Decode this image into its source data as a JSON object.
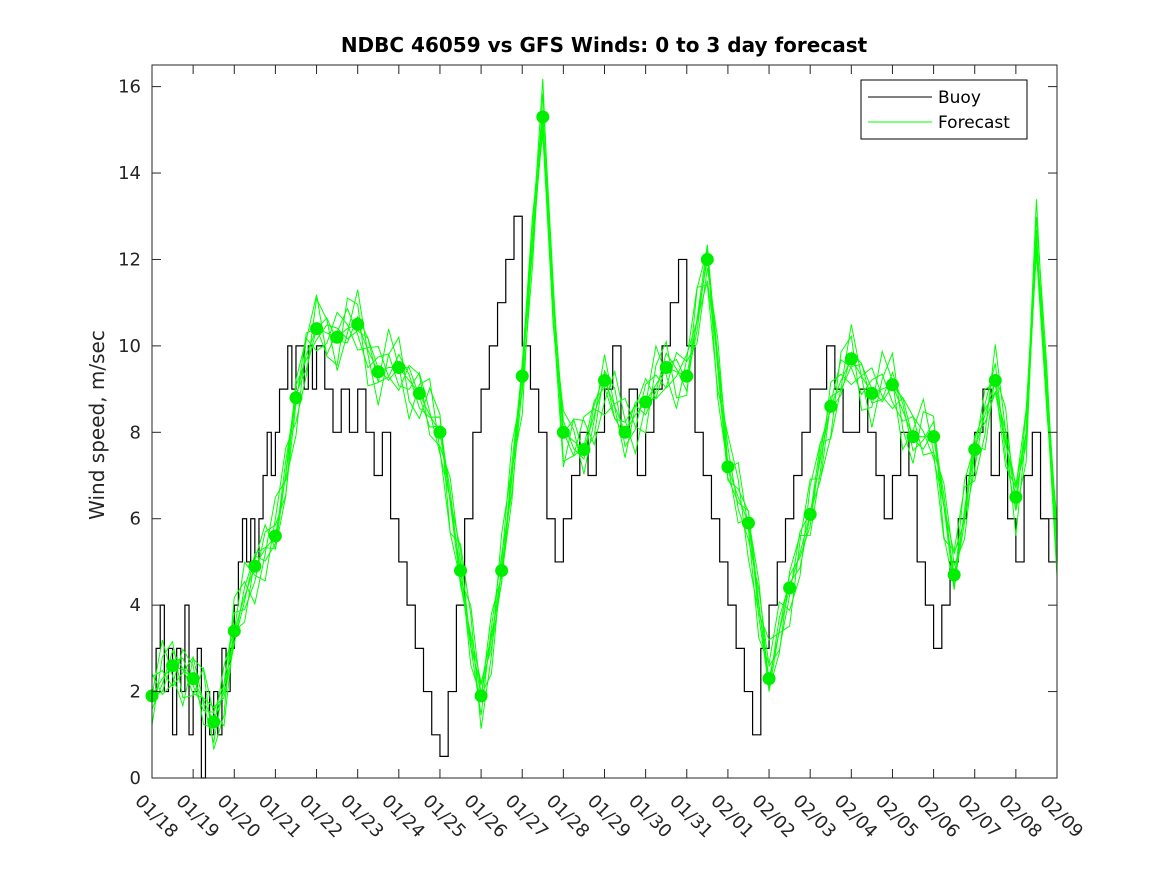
{
  "chart_data": {
    "type": "line",
    "title": "NDBC 46059 vs GFS Winds: 0 to 3 day forecast",
    "xlabel": "",
    "ylabel": "Wind speed, m/sec",
    "x_tick_labels": [
      "01/18",
      "01/19",
      "01/20",
      "01/21",
      "01/22",
      "01/23",
      "01/24",
      "01/25",
      "01/26",
      "01/27",
      "01/28",
      "01/29",
      "01/30",
      "01/31",
      "02/01",
      "02/02",
      "02/03",
      "02/04",
      "02/05",
      "02/06",
      "02/07",
      "02/08",
      "02/09"
    ],
    "xlim": [
      0,
      22
    ],
    "ylim": [
      0,
      16.5
    ],
    "y_ticks": [
      0,
      2,
      4,
      6,
      8,
      10,
      12,
      14,
      16
    ],
    "legend": {
      "position": "top-right",
      "entries": [
        {
          "label": "Buoy",
          "color": "#000000"
        },
        {
          "label": "Forecast",
          "color": "#00ff00"
        }
      ]
    },
    "colors": {
      "buoy": "#000000",
      "forecast": "#00ff00",
      "marker": "#00ee00"
    },
    "series": [
      {
        "name": "Buoy",
        "x": [
          0,
          0.1,
          0.2,
          0.3,
          0.4,
          0.5,
          0.6,
          0.7,
          0.8,
          0.9,
          1.0,
          1.1,
          1.2,
          1.3,
          1.4,
          1.5,
          1.6,
          1.7,
          1.8,
          1.9,
          2.0,
          2.1,
          2.2,
          2.3,
          2.4,
          2.5,
          2.6,
          2.7,
          2.8,
          2.9,
          3.0,
          3.1,
          3.2,
          3.3,
          3.4,
          3.5,
          3.6,
          3.7,
          3.8,
          3.9,
          4.0,
          4.2,
          4.4,
          4.6,
          4.8,
          5.0,
          5.2,
          5.4,
          5.6,
          5.8,
          6.0,
          6.2,
          6.4,
          6.6,
          6.8,
          7.0,
          7.2,
          7.4,
          7.6,
          7.8,
          8.0,
          8.2,
          8.4,
          8.6,
          8.8,
          9.0,
          9.2,
          9.4,
          9.6,
          9.8,
          10.0,
          10.2,
          10.4,
          10.6,
          10.8,
          11.0,
          11.2,
          11.4,
          11.6,
          11.8,
          12.0,
          12.2,
          12.4,
          12.6,
          12.8,
          13.0,
          13.2,
          13.4,
          13.6,
          13.8,
          14.0,
          14.2,
          14.4,
          14.6,
          14.8,
          15.0,
          15.2,
          15.4,
          15.6,
          15.8,
          16.0,
          16.2,
          16.4,
          16.6,
          16.8,
          17.0,
          17.2,
          17.4,
          17.6,
          17.8,
          18.0,
          18.2,
          18.4,
          18.6,
          18.8,
          19.0,
          19.2,
          19.4,
          19.6,
          19.8,
          20.0,
          20.2,
          20.4,
          20.6,
          20.8,
          21.0,
          21.2,
          21.4,
          21.6,
          21.8,
          22.0
        ],
        "values": [
          2,
          3,
          4,
          2,
          3,
          1,
          3,
          2,
          4,
          1,
          2,
          3,
          0,
          2,
          1,
          2,
          1,
          3,
          2,
          3,
          4,
          5,
          6,
          5,
          6,
          5,
          6,
          7,
          8,
          7,
          8,
          9,
          9,
          10,
          9,
          10,
          10,
          9,
          10,
          9,
          10,
          9,
          8,
          9,
          8,
          9,
          8,
          7,
          8,
          6,
          5,
          4,
          3,
          2,
          1,
          0.5,
          2,
          4,
          6,
          8,
          9,
          10,
          11,
          12,
          13,
          10,
          9,
          8,
          6,
          5,
          6,
          7,
          8,
          7,
          8,
          9,
          10,
          8,
          9,
          7,
          8,
          9,
          10,
          11,
          12,
          10,
          8,
          7,
          6,
          5,
          4,
          3,
          2,
          1,
          3,
          4,
          5,
          6,
          7,
          8,
          9,
          9,
          10,
          9,
          8,
          8,
          9,
          8,
          7,
          6,
          7,
          8,
          7,
          5,
          4,
          3,
          4,
          5,
          6,
          7,
          8,
          9,
          7,
          8,
          6,
          5,
          7,
          8,
          6,
          5,
          6
        ]
      },
      {
        "name": "Forecast",
        "x": [
          0,
          0.25,
          0.5,
          0.75,
          1.0,
          1.25,
          1.5,
          1.75,
          2.0,
          2.25,
          2.5,
          2.75,
          3.0,
          3.25,
          3.5,
          3.75,
          4.0,
          4.25,
          4.5,
          4.75,
          5.0,
          5.25,
          5.5,
          5.75,
          6.0,
          6.25,
          6.5,
          6.75,
          7.0,
          7.25,
          7.5,
          7.75,
          8.0,
          8.25,
          8.5,
          8.75,
          9.0,
          9.25,
          9.5,
          9.75,
          10.0,
          10.25,
          10.5,
          10.75,
          11.0,
          11.25,
          11.5,
          11.75,
          12.0,
          12.25,
          12.5,
          12.75,
          13.0,
          13.25,
          13.5,
          13.75,
          14.0,
          14.25,
          14.5,
          14.75,
          15.0,
          15.25,
          15.5,
          15.75,
          16.0,
          16.25,
          16.5,
          16.75,
          17.0,
          17.25,
          17.5,
          17.75,
          18.0,
          18.25,
          18.5,
          18.75,
          19.0,
          19.25,
          19.5,
          19.75,
          20.0,
          20.25,
          20.5,
          20.75,
          21.0,
          21.25,
          21.5,
          21.75,
          22.0
        ],
        "values": [
          1.9,
          2.3,
          2.6,
          2.5,
          2.3,
          1.8,
          1.3,
          2.0,
          3.4,
          4.2,
          4.9,
          5.3,
          5.6,
          7.0,
          8.8,
          9.8,
          10.4,
          10.3,
          10.2,
          10.4,
          10.5,
          9.9,
          9.4,
          9.5,
          9.5,
          9.2,
          8.9,
          8.4,
          8.0,
          6.4,
          4.8,
          3.2,
          1.9,
          3.2,
          4.8,
          7.0,
          9.3,
          12.5,
          15.3,
          11.0,
          8.0,
          7.8,
          7.6,
          8.4,
          9.2,
          8.6,
          8.0,
          8.4,
          8.7,
          9.1,
          9.5,
          9.4,
          9.3,
          10.6,
          12.0,
          9.6,
          7.2,
          6.5,
          5.9,
          4.0,
          2.3,
          3.4,
          4.4,
          5.2,
          6.1,
          7.4,
          8.6,
          9.2,
          9.7,
          9.3,
          8.9,
          9.0,
          9.1,
          8.5,
          7.9,
          7.9,
          7.9,
          6.3,
          4.7,
          6.1,
          7.6,
          8.4,
          9.2,
          7.8,
          6.5,
          8.0,
          12.5,
          9.0,
          5.5
        ]
      },
      {
        "name": "",
        "x": [
          0,
          0.5,
          1,
          1.5,
          2,
          2.5,
          3,
          3.5,
          4,
          4.5,
          5,
          5.5,
          6,
          6.5,
          7,
          7.5,
          8,
          8.5,
          9,
          9.5,
          10,
          10.5,
          11,
          11.5,
          12,
          12.5,
          13,
          13.5,
          14,
          14.5,
          15,
          15.5,
          16,
          16.5,
          17,
          17.5,
          18,
          18.5,
          19,
          19.5,
          20,
          20.5,
          21
        ],
        "values": [
          1.9,
          2.6,
          2.3,
          1.3,
          3.4,
          4.9,
          5.6,
          8.8,
          10.4,
          10.2,
          10.5,
          9.4,
          9.5,
          8.9,
          8.0,
          4.8,
          1.9,
          4.8,
          9.3,
          15.3,
          8.0,
          7.6,
          9.2,
          8.0,
          8.7,
          9.5,
          9.3,
          12.0,
          7.2,
          5.9,
          2.3,
          4.4,
          6.1,
          8.6,
          9.7,
          8.9,
          9.1,
          7.9,
          7.9,
          4.7,
          7.6,
          9.2,
          6.5
        ]
      }
    ]
  }
}
